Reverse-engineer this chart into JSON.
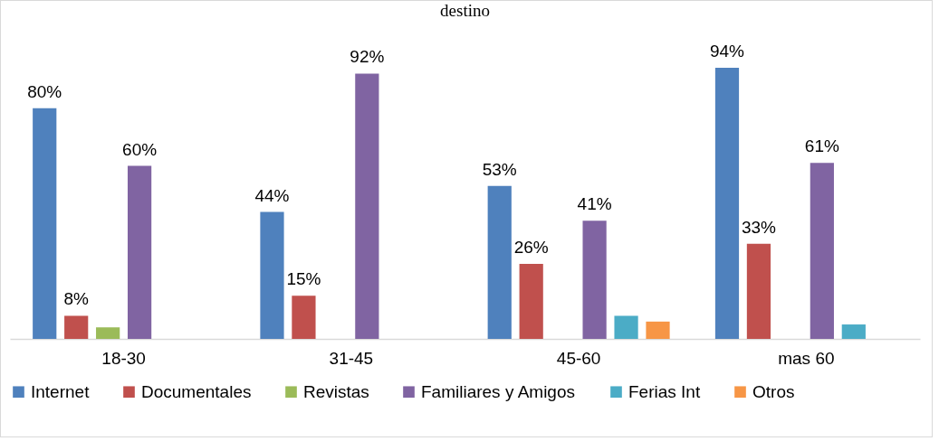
{
  "chart_data": {
    "type": "bar",
    "title": "destino",
    "categories": [
      "18-30",
      "31-45",
      "45-60",
      "mas 60"
    ],
    "series": [
      {
        "name": "Internet",
        "color": "#4f81bd",
        "values": [
          80,
          44,
          53,
          94
        ],
        "value_labels": [
          "80%",
          "44%",
          "53%",
          "94%"
        ]
      },
      {
        "name": "Documentales",
        "color": "#c0504d",
        "values": [
          8,
          15,
          26,
          33
        ],
        "value_labels": [
          "8%",
          "15%",
          "26%",
          "33%"
        ]
      },
      {
        "name": "Revistas",
        "color": "#9bbb59",
        "values": [
          4,
          null,
          null,
          null
        ],
        "value_labels": [
          null,
          null,
          null,
          null
        ]
      },
      {
        "name": "Familiares y Amigos",
        "color": "#8064a2",
        "values": [
          60,
          92,
          41,
          61
        ],
        "value_labels": [
          "60%",
          "92%",
          "41%",
          "61%"
        ]
      },
      {
        "name": "Ferias Int",
        "color": "#4bacc6",
        "values": [
          null,
          null,
          8,
          5
        ],
        "value_labels": [
          null,
          null,
          null,
          null
        ]
      },
      {
        "name": "Otros",
        "color": "#f79646",
        "values": [
          null,
          null,
          6,
          null
        ],
        "value_labels": [
          null,
          null,
          null,
          null
        ]
      }
    ],
    "legend": "bottom",
    "grid": false
  }
}
